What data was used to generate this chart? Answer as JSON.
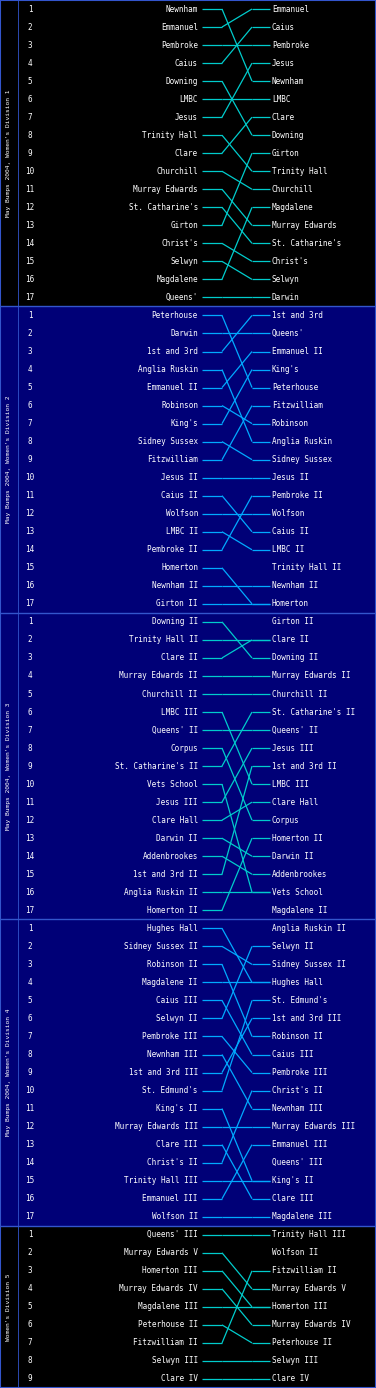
{
  "bg_color": "#000000",
  "line_color_div1": "#00CCCC",
  "line_color_div2": "#00AAFF",
  "text_color": "#FFFFFF",
  "num_color": "#FFFFFF",
  "border_color": "#2244BB",
  "divisions": [
    {
      "name": "May Bumps 2004, Women's Division 1",
      "bg_color": "#000000",
      "line_color": "#00CCCC",
      "text_color": "#FFFFFF",
      "start": [
        "Newnham",
        "Emmanuel",
        "Pembroke",
        "Caius",
        "Downing",
        "LMBC",
        "Jesus",
        "Trinity Hall",
        "Clare",
        "Churchill",
        "Murray Edwards",
        "St. Catharine's",
        "Girton",
        "Christ's",
        "Selwyn",
        "Magdalene",
        "Queens'"
      ],
      "end": [
        "Emmanuel",
        "Caius",
        "Pembroke",
        "Jesus",
        "Newnham",
        "LMBC",
        "Clare",
        "Downing",
        "Girton",
        "Trinity Hall",
        "Churchill",
        "Magdalene",
        "Murray Edwards",
        "St. Catharine's",
        "Christ's",
        "Selwyn",
        "Darwin"
      ]
    },
    {
      "name": "May Bumps 2004, Women's Division 2",
      "bg_color": "#000077",
      "line_color": "#00AAFF",
      "text_color": "#FFFFFF",
      "start": [
        "Peterhouse",
        "Darwin",
        "1st and 3rd",
        "Anglia Ruskin",
        "Emmanuel II",
        "Robinson",
        "King's",
        "Sidney Sussex",
        "Fitzwilliam",
        "Jesus II",
        "Caius II",
        "Wolfson",
        "LMBC II",
        "Pembroke II",
        "Homerton",
        "Newnham II",
        "Girton II"
      ],
      "end": [
        "1st and 3rd",
        "Queens'",
        "Emmanuel II",
        "King's",
        "Peterhouse",
        "Fitzwilliam",
        "Robinson",
        "Anglia Ruskin",
        "Sidney Sussex",
        "Jesus II",
        "Pembroke II",
        "Wolfson",
        "Caius II",
        "LMBC II",
        "Trinity Hall II",
        "Newnham II",
        "Homerton"
      ]
    },
    {
      "name": "May Bumps 2004, Women's Division 3",
      "bg_color": "#000077",
      "line_color": "#00CCCC",
      "text_color": "#FFFFFF",
      "start": [
        "Downing II",
        "Trinity Hall II",
        "Clare II",
        "Murray Edwards II",
        "Churchill II",
        "LMBC III",
        "Queens' II",
        "Corpus",
        "St. Catharine's II",
        "Vets School",
        "Jesus III",
        "Clare Hall",
        "Darwin II",
        "Addenbrookes",
        "1st and 3rd II",
        "Anglia Ruskin II",
        "Homerton II"
      ],
      "end": [
        "Girton II",
        "Clare II",
        "Downing II",
        "Murray Edwards II",
        "Churchill II",
        "St. Catharine's II",
        "Queens' II",
        "Jesus III",
        "1st and 3rd II",
        "LMBC III",
        "Clare Hall",
        "Corpus",
        "Homerton II",
        "Darwin II",
        "Addenbrookes",
        "Vets School",
        "Magdalene II"
      ]
    },
    {
      "name": "May Bumps 2004, Women's Division 4",
      "bg_color": "#000077",
      "line_color": "#00AAFF",
      "text_color": "#FFFFFF",
      "start": [
        "Hughes Hall",
        "Sidney Sussex II",
        "Robinson II",
        "Magdalene II",
        "Caius III",
        "Selwyn II",
        "Pembroke III",
        "Newnham III",
        "1st and 3rd III",
        "St. Edmund's",
        "King's II",
        "Murray Edwards III",
        "Clare III",
        "Christ's II",
        "Trinity Hall III",
        "Emmanuel III",
        "Wolfson II"
      ],
      "end": [
        "Anglia Ruskin II",
        "Selwyn II",
        "Sidney Sussex II",
        "Hughes Hall",
        "St. Edmund's",
        "1st and 3rd III",
        "Robinson II",
        "Caius III",
        "Pembroke III",
        "Christ's II",
        "Newnham III",
        "Murray Edwards III",
        "Emmanuel III",
        "Queens' III",
        "King's II",
        "Clare III",
        "Magdalene III"
      ]
    },
    {
      "name": "Women's Division 5",
      "bg_color": "#000000",
      "line_color": "#00CCCC",
      "text_color": "#FFFFFF",
      "start": [
        "Queens' III",
        "Murray Edwards V",
        "Homerton III",
        "Murray Edwards IV",
        "Magdalene III",
        "Peterhouse II",
        "Fitzwilliam II",
        "Selwyn III",
        "Clare IV"
      ],
      "end": [
        "Trinity Hall III",
        "Wolfson II",
        "Fitzwilliam II",
        "Murray Edwards V",
        "Homerton III",
        "Murray Edwards IV",
        "Peterhouse II",
        "Selwyn III",
        "Clare IV"
      ]
    }
  ]
}
